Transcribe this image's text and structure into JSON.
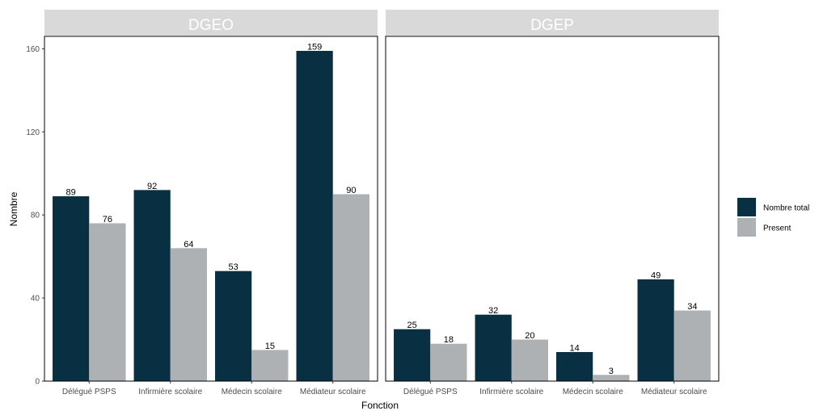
{
  "chart_data": {
    "type": "bar",
    "xlabel": "Fonction",
    "ylabel": "Nombre",
    "ylim": [
      0,
      166
    ],
    "yticks": [
      0,
      40,
      80,
      120,
      160
    ],
    "categories": [
      "Délégué PSPS",
      "Infirmière scolaire",
      "Médecin scolaire",
      "Médiateur scolaire"
    ],
    "legend": {
      "position": "right",
      "entries": [
        {
          "name": "Nombre total",
          "color": "#082f42"
        },
        {
          "name": "Present",
          "color": "#aeb1b4"
        }
      ]
    },
    "panels": [
      {
        "title": "DGEO",
        "series": [
          {
            "name": "Nombre total",
            "values": [
              89,
              92,
              53,
              159
            ]
          },
          {
            "name": "Present",
            "values": [
              76,
              64,
              15,
              90
            ]
          }
        ]
      },
      {
        "title": "DGEP",
        "series": [
          {
            "name": "Nombre total",
            "values": [
              25,
              32,
              14,
              49
            ]
          },
          {
            "name": "Present",
            "values": [
              18,
              20,
              3,
              34
            ]
          }
        ]
      }
    ]
  }
}
